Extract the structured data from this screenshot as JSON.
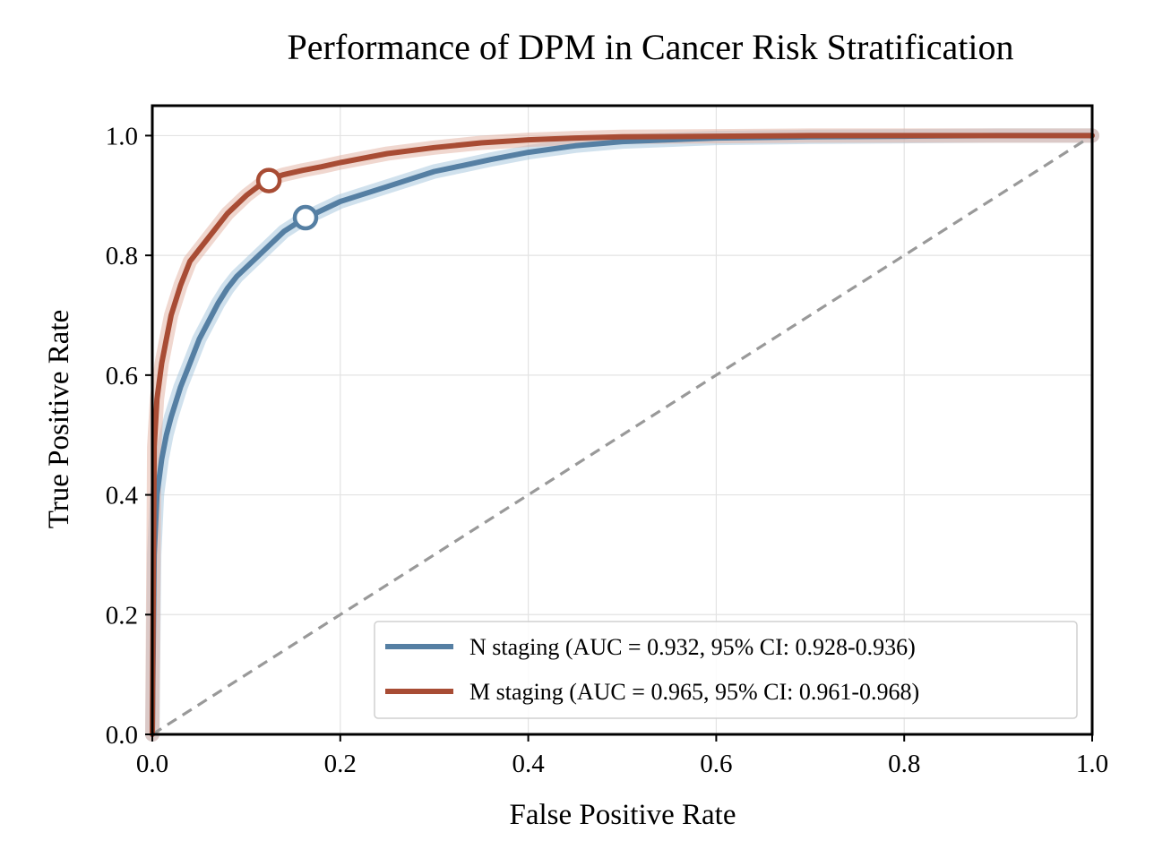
{
  "chart_data": {
    "type": "line",
    "title": "Performance of DPM in Cancer Risk Stratification",
    "xlabel": "False Positive Rate",
    "ylabel": "True Positive Rate",
    "xlim": [
      0.0,
      1.0
    ],
    "ylim": [
      0.0,
      1.05
    ],
    "xticks": [
      "0.0",
      "0.2",
      "0.4",
      "0.6",
      "0.8",
      "1.0"
    ],
    "yticks": [
      "0.0",
      "0.2",
      "0.4",
      "0.6",
      "0.8",
      "1.0"
    ],
    "grid": true,
    "legend_position": "lower-right",
    "reference_line": {
      "x": [
        0,
        1
      ],
      "y": [
        0,
        1
      ],
      "style": "dashed",
      "color": "#999999"
    },
    "series": [
      {
        "name": "N staging (AUC = 0.932, 95% CI: 0.928-0.936)",
        "color": "#557FA3",
        "band_color": "#A9C8DE",
        "x": [
          0,
          0.002,
          0.005,
          0.01,
          0.015,
          0.02,
          0.03,
          0.04,
          0.05,
          0.06,
          0.07,
          0.08,
          0.09,
          0.1,
          0.12,
          0.14,
          0.16,
          0.18,
          0.2,
          0.22,
          0.25,
          0.28,
          0.3,
          0.33,
          0.36,
          0.4,
          0.45,
          0.5,
          0.55,
          0.6,
          0.7,
          0.8,
          0.9,
          1.0
        ],
        "y": [
          0,
          0.3,
          0.4,
          0.46,
          0.5,
          0.53,
          0.58,
          0.62,
          0.66,
          0.69,
          0.72,
          0.745,
          0.765,
          0.78,
          0.81,
          0.84,
          0.86,
          0.875,
          0.89,
          0.9,
          0.915,
          0.93,
          0.94,
          0.95,
          0.96,
          0.972,
          0.983,
          0.99,
          0.993,
          0.996,
          0.998,
          0.999,
          1.0,
          1.0
        ],
        "operating_point": {
          "x": 0.163,
          "y": 0.863
        }
      },
      {
        "name": "M staging (AUC = 0.965, 95% CI: 0.961-0.968)",
        "color": "#A84C34",
        "band_color": "#E3B6A8",
        "x": [
          0,
          0.002,
          0.005,
          0.01,
          0.015,
          0.02,
          0.03,
          0.04,
          0.05,
          0.06,
          0.07,
          0.08,
          0.09,
          0.1,
          0.11,
          0.12,
          0.14,
          0.16,
          0.18,
          0.2,
          0.25,
          0.3,
          0.35,
          0.4,
          0.45,
          0.5,
          0.6,
          0.7,
          0.8,
          0.9,
          1.0
        ],
        "y": [
          0,
          0.48,
          0.56,
          0.62,
          0.66,
          0.7,
          0.75,
          0.79,
          0.81,
          0.83,
          0.85,
          0.87,
          0.885,
          0.9,
          0.912,
          0.925,
          0.935,
          0.942,
          0.948,
          0.955,
          0.97,
          0.98,
          0.988,
          0.993,
          0.996,
          0.998,
          0.999,
          1.0,
          1.0,
          1.0,
          1.0
        ],
        "operating_point": {
          "x": 0.124,
          "y": 0.925
        }
      }
    ]
  }
}
